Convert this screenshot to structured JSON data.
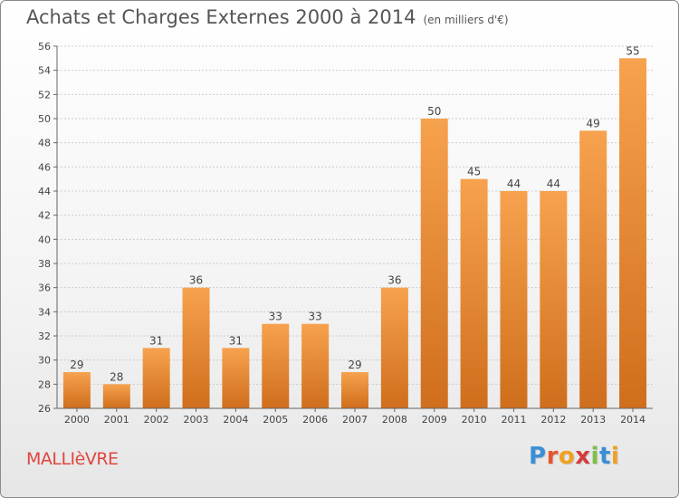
{
  "header": {
    "title": "Achats et Charges Externes 2000 à 2014",
    "unit": "(en milliers d'€)"
  },
  "footer": {
    "city": "MALLIèVRE",
    "logo_letters": [
      "P",
      "r",
      "o",
      "x",
      "i",
      "t",
      "i"
    ],
    "logo_colors": [
      "#3a8fd6",
      "#e8542e",
      "#f0a020",
      "#d63a3a",
      "#7cc04a",
      "#3a8fd6",
      "#f0a020"
    ]
  },
  "colors": {
    "bar_light": "#f7a24e",
    "bar_dark": "#cf6e1c",
    "grid": "#cccccc",
    "text": "#444444"
  },
  "chart_data": {
    "type": "bar",
    "title": "Achats et Charges Externes 2000 à 2014",
    "categories": [
      "2000",
      "2001",
      "2002",
      "2003",
      "2004",
      "2005",
      "2006",
      "2007",
      "2008",
      "2009",
      "2010",
      "2011",
      "2012",
      "2013",
      "2014"
    ],
    "values": [
      29,
      28,
      31,
      36,
      31,
      33,
      33,
      29,
      36,
      50,
      45,
      44,
      44,
      49,
      55
    ],
    "ylim": [
      26,
      56
    ],
    "yticks": [
      26,
      28,
      30,
      32,
      34,
      36,
      38,
      40,
      42,
      44,
      46,
      48,
      50,
      52,
      54,
      56
    ],
    "grid": true,
    "data_labels": true
  }
}
